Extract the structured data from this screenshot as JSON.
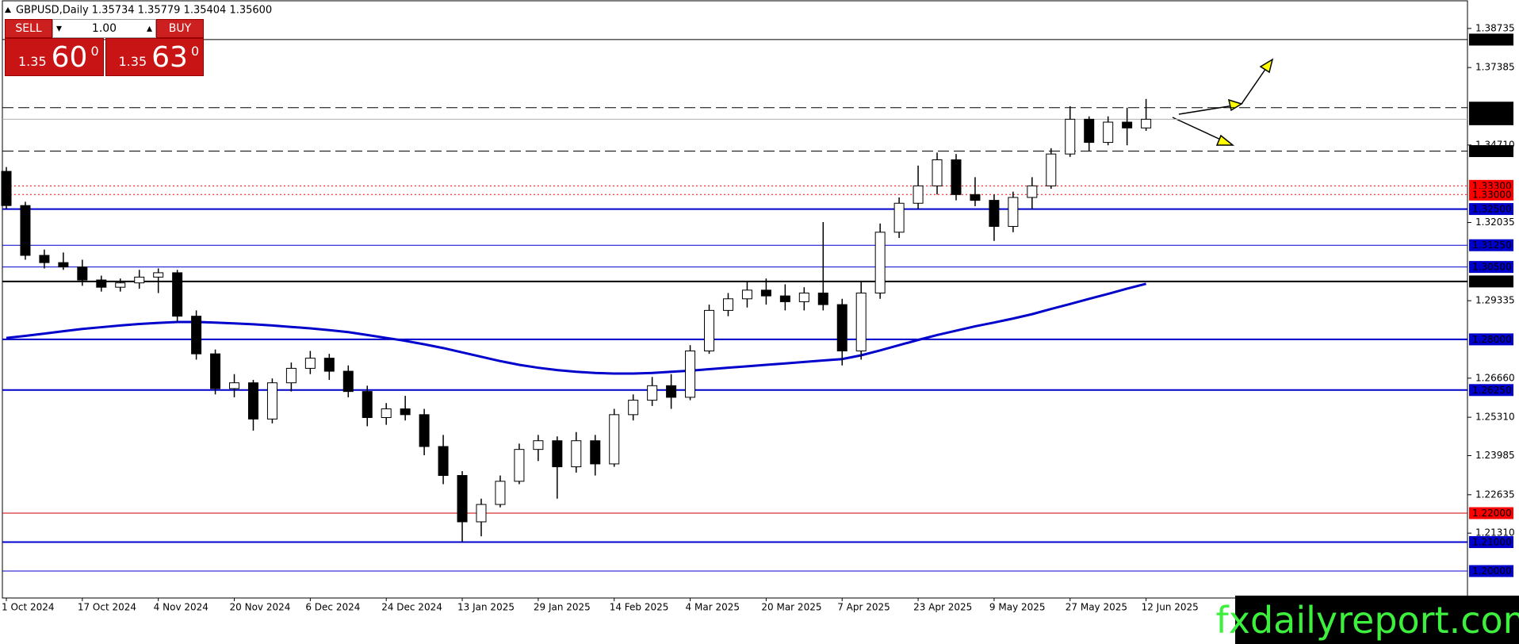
{
  "header": "GBPUSD,Daily  1.35734 1.35779 1.35404 1.35600",
  "trade_panel": {
    "sell": "SELL",
    "buy": "BUY",
    "lots": "1.00",
    "sell_price": {
      "big": "1.35",
      "main": "60",
      "sup": "0"
    },
    "buy_price": {
      "big": "1.35",
      "main": "63",
      "sup": "0"
    }
  },
  "watermark": "fxdailyreport.com",
  "chart_data": {
    "type": "candlestick",
    "categories": [
      "1 Oct 2024",
      null,
      null,
      null,
      "17 Oct 2024",
      null,
      null,
      null,
      "4 Nov 2024",
      null,
      null,
      null,
      "20 Nov 2024",
      null,
      null,
      null,
      "6 Dec 2024",
      null,
      null,
      null,
      "24 Dec 2024",
      null,
      null,
      null,
      "13 Jan 2025",
      null,
      null,
      null,
      "29 Jan 2025",
      null,
      null,
      null,
      "14 Feb 2025",
      null,
      null,
      null,
      "4 Mar 2025",
      null,
      null,
      null,
      "20 Mar 2025",
      null,
      null,
      null,
      "7 Apr 2025",
      null,
      null,
      null,
      "23 Apr 2025",
      null,
      null,
      null,
      "9 May 2025",
      null,
      null,
      null,
      "27 May 2025",
      null,
      null,
      null,
      "12 Jun 2025"
    ],
    "open": [
      1.338,
      1.3262,
      1.309,
      1.3065,
      1.305,
      1.3005,
      1.298,
      1.2995,
      1.3015,
      1.303,
      1.288,
      1.275,
      1.263,
      1.265,
      1.2525,
      1.265,
      1.27,
      1.2735,
      1.269,
      1.262,
      1.253,
      1.256,
      1.254,
      1.243,
      1.233,
      1.217,
      1.223,
      1.231,
      1.242,
      1.245,
      1.236,
      1.245,
      1.237,
      1.254,
      1.259,
      1.264,
      1.26,
      1.276,
      1.29,
      1.294,
      1.297,
      1.295,
      1.293,
      1.296,
      1.292,
      1.276,
      1.296,
      1.317,
      1.327,
      1.333,
      1.342,
      1.33,
      1.328,
      1.319,
      1.329,
      1.333,
      1.344,
      1.356,
      1.348,
      1.355,
      1.353
    ],
    "high": [
      1.3395,
      1.3275,
      1.311,
      1.31,
      1.3075,
      1.302,
      1.301,
      1.304,
      1.3045,
      1.304,
      1.29,
      1.2765,
      1.268,
      1.266,
      1.2665,
      1.272,
      1.276,
      1.275,
      1.271,
      1.264,
      1.258,
      1.2605,
      1.256,
      1.247,
      1.2345,
      1.225,
      1.233,
      1.244,
      1.247,
      1.2465,
      1.248,
      1.247,
      1.256,
      1.261,
      1.267,
      1.268,
      1.278,
      1.292,
      1.296,
      1.3,
      1.301,
      1.299,
      1.298,
      1.3205,
      1.294,
      1.3,
      1.32,
      1.329,
      1.34,
      1.3445,
      1.344,
      1.336,
      1.33,
      1.331,
      1.336,
      1.346,
      1.3605,
      1.357,
      1.357,
      1.36,
      1.363
    ],
    "low": [
      1.325,
      1.3075,
      1.3045,
      1.304,
      1.2985,
      1.2965,
      1.2965,
      1.2975,
      1.296,
      1.286,
      1.273,
      1.261,
      1.26,
      1.2485,
      1.251,
      1.262,
      1.268,
      1.266,
      1.26,
      1.25,
      1.2505,
      1.252,
      1.24,
      1.23,
      1.21,
      1.212,
      1.222,
      1.23,
      1.238,
      1.225,
      1.234,
      1.233,
      1.236,
      1.252,
      1.257,
      1.256,
      1.259,
      1.275,
      1.288,
      1.291,
      1.292,
      1.29,
      1.29,
      1.29,
      1.271,
      1.273,
      1.294,
      1.315,
      1.325,
      1.33,
      1.328,
      1.326,
      1.314,
      1.317,
      1.325,
      1.332,
      1.343,
      1.345,
      1.347,
      1.347,
      1.352
    ],
    "close": [
      1.3262,
      1.309,
      1.3065,
      1.305,
      1.3005,
      1.298,
      1.2995,
      1.3015,
      1.303,
      1.288,
      1.275,
      1.263,
      1.265,
      1.2525,
      1.265,
      1.27,
      1.2735,
      1.269,
      1.262,
      1.253,
      1.256,
      1.254,
      1.243,
      1.233,
      1.217,
      1.223,
      1.231,
      1.242,
      1.245,
      1.236,
      1.245,
      1.237,
      1.254,
      1.259,
      1.264,
      1.26,
      1.276,
      1.29,
      1.294,
      1.297,
      1.295,
      1.293,
      1.296,
      1.292,
      1.276,
      1.296,
      1.317,
      1.327,
      1.333,
      1.342,
      1.33,
      1.328,
      1.319,
      1.329,
      1.333,
      1.344,
      1.356,
      1.348,
      1.355,
      1.353,
      1.356
    ],
    "up_color": "#ffffff",
    "down_color": "#000000",
    "ma": {
      "color": "#0000cc",
      "values": [
        1.2805,
        1.2812,
        1.282,
        1.2828,
        1.2836,
        1.2842,
        1.2848,
        1.2853,
        1.2857,
        1.286,
        1.286,
        1.2858,
        1.2855,
        1.2852,
        1.2848,
        1.2843,
        1.2838,
        1.2832,
        1.2825,
        1.2815,
        1.2805,
        1.2795,
        1.2783,
        1.277,
        1.2755,
        1.274,
        1.2725,
        1.2712,
        1.2702,
        1.2694,
        1.2688,
        1.2684,
        1.2682,
        1.2682,
        1.2684,
        1.2688,
        1.2692,
        1.2697,
        1.2702,
        1.2707,
        1.2712,
        1.2717,
        1.2722,
        1.2727,
        1.2732,
        1.2745,
        1.2762,
        1.278,
        1.2798,
        1.2815,
        1.283,
        1.2845,
        1.2858,
        1.2872,
        1.2887,
        1.2905,
        1.2922,
        1.294,
        1.2957,
        1.2975,
        1.2992
      ]
    },
    "ylim": [
      1.1907,
      1.3969
    ],
    "yticks": [
      1.38735,
      1.37385,
      {
        "value": 1.3471,
        "label": "1.34710"
      },
      1.32035,
      1.29335,
      {
        "value": 1.2666,
        "label": "1.26660"
      },
      {
        "value": 1.2531,
        "label": "1.25310"
      },
      1.23985,
      1.22635,
      {
        "value": 1.2131,
        "label": "1.21310"
      }
    ],
    "levels": [
      {
        "value": 1.3835,
        "label": "1.38350",
        "color": "#000000",
        "label_color": "#000000",
        "style": "solid",
        "weight": "thin"
      },
      {
        "value": 1.36,
        "label": "1.36000",
        "color": "#000000",
        "label_color": "#000000",
        "style": "dashed",
        "weight": "thin"
      },
      {
        "value": 1.356,
        "label": "1.35600",
        "color": "#b0b0b0",
        "label_color": "#000000",
        "style": "solid",
        "weight": "thin"
      },
      {
        "value": 1.345,
        "label": "1.34500",
        "color": "#000000",
        "label_color": "#000000",
        "style": "dashed",
        "weight": "thin"
      },
      {
        "value": 1.333,
        "label": "1.33300",
        "color": "#ff0000",
        "label_color": "#ff0000",
        "style": "dotted",
        "weight": "thin"
      },
      {
        "value": 1.33,
        "label": "1.33000",
        "color": "#ff0000",
        "label_color": "#ff0000",
        "style": "dotted",
        "weight": "thin"
      },
      {
        "value": 1.325,
        "label": "1.32500",
        "color": "#0000cc",
        "label_color": "#0000cc",
        "style": "solid",
        "weight": "thick"
      },
      {
        "value": 1.3125,
        "label": "1.31250",
        "color": "#0000cc",
        "label_color": "#0000cc",
        "style": "solid",
        "weight": "thin"
      },
      {
        "value": 1.305,
        "label": "1.30500",
        "color": "#0000cc",
        "label_color": "#0000cc",
        "style": "solid",
        "weight": "thin"
      },
      {
        "value": 1.3,
        "label": "1.30000",
        "color": "#000000",
        "label_color": "#000000",
        "style": "solid",
        "weight": "thick"
      },
      {
        "value": 1.28,
        "label": "1.28000",
        "color": "#0000cc",
        "label_color": "#0000cc",
        "style": "solid",
        "weight": "thick"
      },
      {
        "value": 1.2625,
        "label": "1.26250",
        "color": "#0000cc",
        "label_color": "#0000cc",
        "style": "solid",
        "weight": "thick"
      },
      {
        "value": 1.22,
        "label": "1.22000",
        "color": "#cc0000",
        "label_color": "#ff0000",
        "style": "solid",
        "weight": "thin"
      },
      {
        "value": 1.21,
        "label": "1.21000",
        "color": "#0000cc",
        "label_color": "#0000cc",
        "style": "solid",
        "weight": "thick"
      },
      {
        "value": 1.2,
        "label": "1.20000",
        "color": "#0000cc",
        "label_color": "#0000cc",
        "style": "solid",
        "weight": "thin"
      }
    ]
  }
}
